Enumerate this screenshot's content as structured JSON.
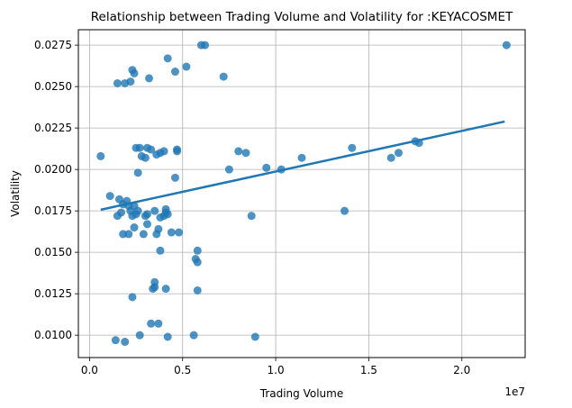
{
  "chart_data": {
    "type": "scatter",
    "title": "Relationship between Trading Volume and Volatility for :KEYACOSMET",
    "xlabel": "Trading Volume",
    "ylabel": "Volatility",
    "x_offset_label": "1e7",
    "xlim": [
      -0.06,
      2.34
    ],
    "ylim": [
      0.00865,
      0.02843
    ],
    "x_ticks": [
      0.0,
      0.5,
      1.0,
      1.5,
      2.0
    ],
    "x_tick_labels": [
      "0.0",
      "0.5",
      "1.0",
      "1.5",
      "2.0"
    ],
    "y_ticks": [
      0.01,
      0.0125,
      0.015,
      0.0175,
      0.02,
      0.0225,
      0.025,
      0.0275
    ],
    "y_tick_labels": [
      "0.0100",
      "0.0125",
      "0.0150",
      "0.0175",
      "0.0200",
      "0.0225",
      "0.0250",
      "0.0275"
    ],
    "grid": true,
    "point_color": "#1f77b4",
    "line_color": "#1f77b4",
    "points": [
      [
        0.06,
        0.0208
      ],
      [
        0.11,
        0.0184
      ],
      [
        0.15,
        0.0252
      ],
      [
        0.19,
        0.0252
      ],
      [
        0.23,
        0.026
      ],
      [
        0.24,
        0.0258
      ],
      [
        0.22,
        0.0253
      ],
      [
        0.32,
        0.0255
      ],
      [
        0.42,
        0.0267
      ],
      [
        0.46,
        0.0259
      ],
      [
        0.52,
        0.0262
      ],
      [
        0.6,
        0.0275
      ],
      [
        0.62,
        0.0275
      ],
      [
        0.72,
        0.0256
      ],
      [
        2.24,
        0.0275
      ],
      [
        0.25,
        0.0213
      ],
      [
        0.27,
        0.0213
      ],
      [
        0.3,
        0.0207
      ],
      [
        0.28,
        0.0208
      ],
      [
        0.31,
        0.0213
      ],
      [
        0.33,
        0.0212
      ],
      [
        0.36,
        0.0209
      ],
      [
        0.38,
        0.021
      ],
      [
        0.4,
        0.0211
      ],
      [
        0.47,
        0.0211
      ],
      [
        0.47,
        0.0212
      ],
      [
        0.26,
        0.0198
      ],
      [
        0.46,
        0.0195
      ],
      [
        0.75,
        0.02
      ],
      [
        0.8,
        0.0211
      ],
      [
        0.84,
        0.021
      ],
      [
        0.95,
        0.0201
      ],
      [
        1.03,
        0.02
      ],
      [
        1.14,
        0.0207
      ],
      [
        1.41,
        0.0213
      ],
      [
        1.62,
        0.0207
      ],
      [
        1.66,
        0.021
      ],
      [
        1.75,
        0.0217
      ],
      [
        1.77,
        0.0216
      ],
      [
        1.37,
        0.0175
      ],
      [
        0.87,
        0.0172
      ],
      [
        0.16,
        0.0182
      ],
      [
        0.18,
        0.0179
      ],
      [
        0.2,
        0.0181
      ],
      [
        0.21,
        0.0178
      ],
      [
        0.22,
        0.0175
      ],
      [
        0.24,
        0.0178
      ],
      [
        0.15,
        0.0172
      ],
      [
        0.17,
        0.0174
      ],
      [
        0.23,
        0.0172
      ],
      [
        0.25,
        0.0173
      ],
      [
        0.26,
        0.0175
      ],
      [
        0.3,
        0.0172
      ],
      [
        0.31,
        0.0173
      ],
      [
        0.35,
        0.0175
      ],
      [
        0.38,
        0.0171
      ],
      [
        0.4,
        0.0172
      ],
      [
        0.41,
        0.0174
      ],
      [
        0.42,
        0.0173
      ],
      [
        0.41,
        0.0176
      ],
      [
        0.18,
        0.0161
      ],
      [
        0.21,
        0.0161
      ],
      [
        0.24,
        0.0165
      ],
      [
        0.29,
        0.0161
      ],
      [
        0.31,
        0.0167
      ],
      [
        0.36,
        0.0161
      ],
      [
        0.37,
        0.0164
      ],
      [
        0.44,
        0.0162
      ],
      [
        0.48,
        0.0162
      ],
      [
        0.58,
        0.0151
      ],
      [
        0.57,
        0.0146
      ],
      [
        0.58,
        0.0144
      ],
      [
        0.38,
        0.0151
      ],
      [
        0.35,
        0.0132
      ],
      [
        0.34,
        0.0128
      ],
      [
        0.35,
        0.0129
      ],
      [
        0.41,
        0.0128
      ],
      [
        0.23,
        0.0123
      ],
      [
        0.58,
        0.0127
      ],
      [
        0.33,
        0.0107
      ],
      [
        0.37,
        0.0107
      ],
      [
        0.27,
        0.01
      ],
      [
        0.42,
        0.0099
      ],
      [
        0.56,
        0.01
      ],
      [
        0.14,
        0.0097
      ],
      [
        0.19,
        0.0096
      ],
      [
        0.89,
        0.0099
      ]
    ],
    "regression_line": [
      [
        0.06,
        0.01757
      ],
      [
        2.23,
        0.02289
      ]
    ]
  }
}
